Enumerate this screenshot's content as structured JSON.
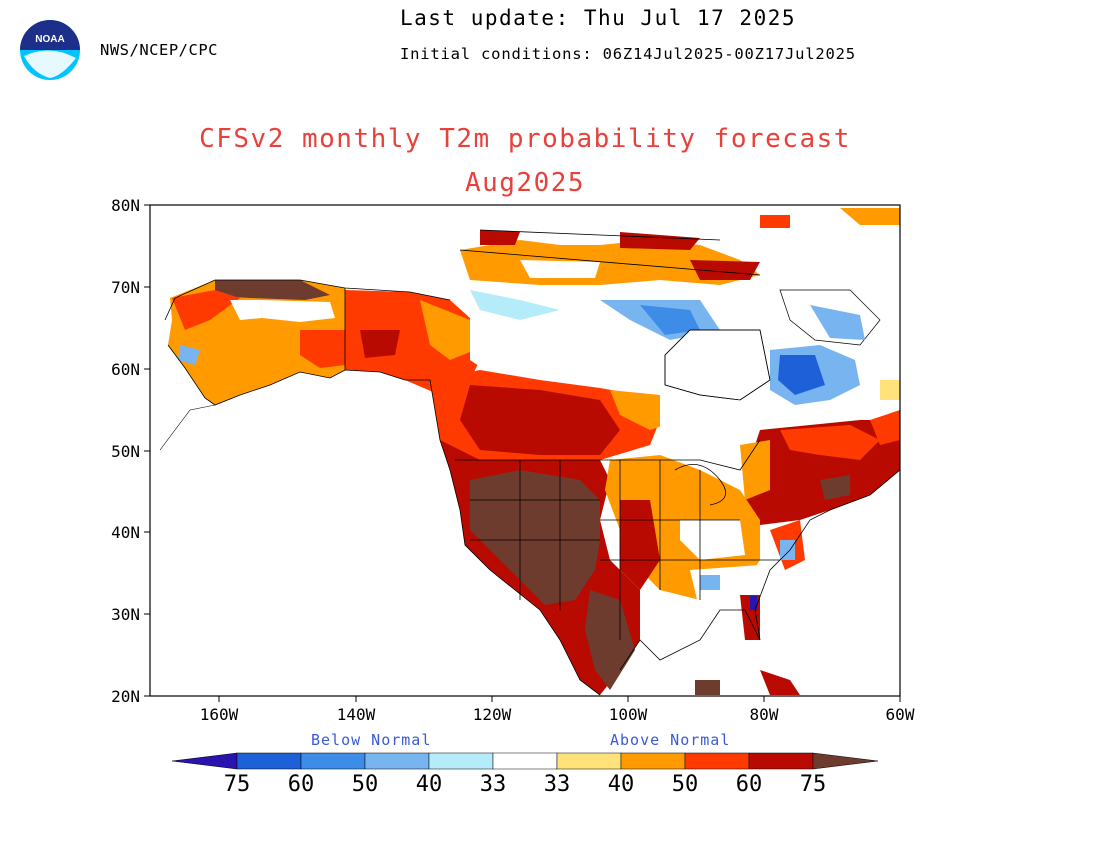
{
  "header": {
    "last_update": "Last update: Thu Jul 17 2025",
    "initial_conditions": "Initial conditions: 06Z14Jul2025-00Z17Jul2025",
    "agency": "NWS/NCEP/CPC",
    "logo_text": "NOAA"
  },
  "map": {
    "title": "CFSv2 monthly T2m probability forecast",
    "subtitle": "Aug2025",
    "title_color": "#e8403a",
    "lat_labels": [
      "80N",
      "70N",
      "60N",
      "50N",
      "40N",
      "30N",
      "20N"
    ],
    "lon_labels": [
      "160W",
      "140W",
      "120W",
      "100W",
      "80W",
      "60W"
    ]
  },
  "legend": {
    "below_label": "Below Normal",
    "above_label": "Above Normal",
    "label_color": "#3a5ad8",
    "values": [
      "75",
      "60",
      "50",
      "40",
      "33",
      "33",
      "40",
      "50",
      "60",
      "75"
    ],
    "colors": {
      "below_75": "#2a14b0",
      "below_60": "#1e60d8",
      "below_50": "#3c8ce8",
      "below_40": "#78b4f0",
      "below_33": "#b4ecfa",
      "normal": "#ffffff",
      "above_33": "#ffe27a",
      "above_40": "#ff9b00",
      "above_50": "#ff3a00",
      "above_60": "#b80a00",
      "above_75": "#6e3c2e"
    }
  }
}
